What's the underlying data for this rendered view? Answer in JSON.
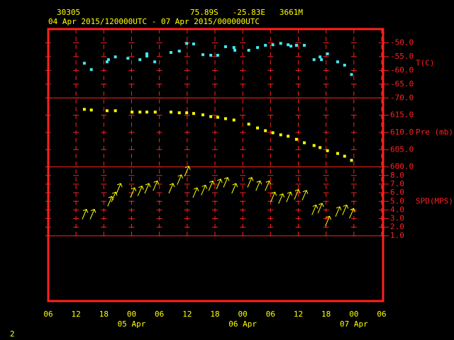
{
  "header": {
    "station": "30305",
    "location": "75.89S   -25.83E   3661M",
    "period": "04 Apr 2015/120000UTC - 07 Apr 2015/000000UTC"
  },
  "x_axis": {
    "xlim": [
      0,
      72
    ],
    "xticks": [
      {
        "value": 0,
        "label": "06"
      },
      {
        "value": 6,
        "label": "12"
      },
      {
        "value": 12,
        "label": "18"
      },
      {
        "value": 18,
        "label": "00"
      },
      {
        "value": 24,
        "label": "06"
      },
      {
        "value": 30,
        "label": "12"
      },
      {
        "value": 36,
        "label": "18"
      },
      {
        "value": 42,
        "label": "00"
      },
      {
        "value": 48,
        "label": "06"
      },
      {
        "value": 54,
        "label": "12"
      },
      {
        "value": 60,
        "label": "18"
      },
      {
        "value": 66,
        "label": "00"
      },
      {
        "value": 72,
        "label": "06"
      }
    ],
    "dates": [
      {
        "value": 18,
        "label": "05 Apr"
      },
      {
        "value": 42,
        "label": "06 Apr"
      },
      {
        "value": 66,
        "label": "07 Apr"
      }
    ]
  },
  "chart_data": [
    {
      "type": "scatter",
      "ylabel": "T(C)",
      "color": "#40e8f0",
      "grid": true,
      "x": [
        7.8,
        9.3,
        12.7,
        13.0,
        14.5,
        17.2,
        19.8,
        21.3,
        21.3,
        23.0,
        26.5,
        28.3,
        29.9,
        31.4,
        33.4,
        35.1,
        36.6,
        38.3,
        40.1,
        40.3,
        43.3,
        45.2,
        46.9,
        48.5,
        50.2,
        51.8,
        52.4,
        53.6,
        55.3,
        57.4,
        58.7,
        59.0,
        60.3,
        62.5,
        64.0,
        65.5
      ],
      "values": [
        -57.4,
        -59.7,
        -56.9,
        -56.1,
        -55.1,
        -55.6,
        -56.1,
        -54.8,
        -54.0,
        -56.9,
        -53.5,
        -53.0,
        -50.2,
        -50.4,
        -54.3,
        -54.5,
        -54.5,
        -51.4,
        -51.7,
        -52.7,
        -52.7,
        -51.7,
        -50.9,
        -50.7,
        -50.2,
        -50.7,
        -51.2,
        -50.9,
        -50.9,
        -56.1,
        -55.1,
        -56.1,
        -54.0,
        -56.9,
        -58.1,
        -61.5
      ],
      "ylim": [
        -70,
        -45
      ],
      "yticks": [
        {
          "value": -50,
          "label": "-50.0"
        },
        {
          "value": -55,
          "label": "-55.0"
        },
        {
          "value": -60,
          "label": "-60.0"
        },
        {
          "value": -65,
          "label": "-65.0"
        },
        {
          "value": -70,
          "label": "-70.0"
        }
      ]
    },
    {
      "type": "scatter",
      "ylabel": "Pre (mb)",
      "color": "#ffff00",
      "grid": true,
      "x": [
        7.8,
        9.3,
        12.7,
        14.5,
        18.1,
        19.8,
        21.3,
        23.1,
        26.5,
        28.3,
        29.9,
        31.4,
        33.4,
        35.1,
        36.6,
        38.3,
        40.1,
        43.3,
        45.2,
        46.9,
        48.5,
        50.2,
        51.8,
        53.6,
        55.3,
        57.4,
        58.7,
        60.3,
        62.5,
        64.0,
        65.5
      ],
      "values": [
        616.7,
        616.5,
        616.3,
        616.3,
        615.9,
        615.9,
        615.9,
        615.9,
        615.9,
        615.7,
        615.7,
        615.5,
        615.1,
        614.6,
        614.4,
        614.0,
        613.6,
        612.4,
        611.3,
        610.5,
        609.9,
        609.3,
        608.9,
        608.0,
        607.0,
        606.2,
        605.6,
        604.7,
        603.9,
        603.1,
        601.9
      ],
      "ylim": [
        600,
        620
      ],
      "yticks": [
        {
          "value": 615,
          "label": "615.0"
        },
        {
          "value": 610,
          "label": "610.0"
        },
        {
          "value": 605,
          "label": "605.0"
        },
        {
          "value": 600,
          "label": "600.0"
        }
      ]
    },
    {
      "type": "wind",
      "ylabel": "SPD(MPS)",
      "color": "#ffff00",
      "grid": true,
      "x": [
        7.8,
        9.5,
        13.3,
        14.1,
        15.2,
        18.2,
        19.8,
        21.3,
        23.1,
        26.5,
        28.3,
        29.9,
        31.7,
        33.5,
        35.1,
        36.8,
        38.3,
        40.1,
        43.5,
        45.3,
        47.3,
        48.5,
        50.2,
        51.9,
        53.6,
        55.3,
        57.4,
        58.7,
        60.3,
        62.5,
        64.0,
        65.5
      ],
      "values": [
        3.5,
        3.5,
        5.0,
        5.5,
        6.5,
        6.0,
        6.2,
        6.5,
        6.8,
        6.5,
        7.5,
        8.5,
        6.0,
        6.3,
        6.8,
        7.0,
        7.2,
        6.5,
        7.2,
        6.8,
        6.8,
        5.5,
        5.3,
        5.5,
        5.8,
        5.7,
        4.0,
        4.2,
        2.7,
        3.8,
        4.0,
        3.6
      ],
      "ylim": [
        1,
        9
      ],
      "yticks": [
        {
          "value": 8,
          "label": "8.0"
        },
        {
          "value": 7,
          "label": "7.0"
        },
        {
          "value": 6,
          "label": "6.0"
        },
        {
          "value": 5,
          "label": "5.0"
        },
        {
          "value": 4,
          "label": "4.0"
        },
        {
          "value": 3,
          "label": "3.0"
        },
        {
          "value": 2,
          "label": "2.0"
        },
        {
          "value": 1,
          "label": "1.0"
        }
      ]
    }
  ],
  "footer": "2"
}
